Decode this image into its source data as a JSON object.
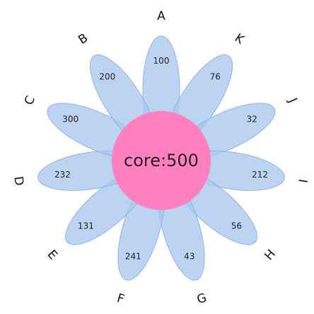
{
  "chart_data": {
    "type": "flower-venn",
    "core": {
      "label": "core:500",
      "value": 500,
      "color": "#ff7fbf"
    },
    "petal_color": "#a9c8ee",
    "sets": [
      {
        "name": "A",
        "value": 100
      },
      {
        "name": "K",
        "value": 76
      },
      {
        "name": "J",
        "value": 32
      },
      {
        "name": "I",
        "value": 212
      },
      {
        "name": "H",
        "value": 56
      },
      {
        "name": "G",
        "value": 43
      },
      {
        "name": "F",
        "value": 241
      },
      {
        "name": "E",
        "value": 131
      },
      {
        "name": "D",
        "value": 232
      },
      {
        "name": "C",
        "value": 300
      },
      {
        "name": "B",
        "value": 200
      }
    ]
  }
}
